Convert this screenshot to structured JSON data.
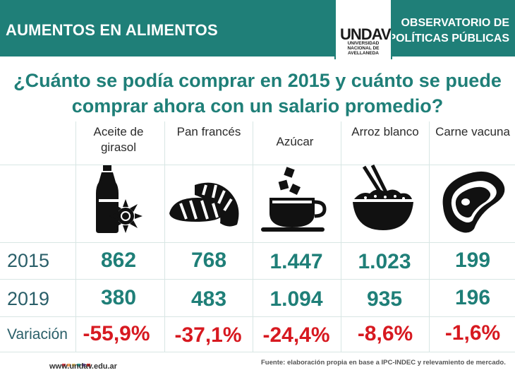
{
  "header": {
    "left_title": "AUMENTOS EN ALIMENTOS",
    "right_title": "OBSERVATORIO DE POLÍTICAS PÚBLICAS",
    "logo_mark": "UNDAV",
    "logo_sub": "UNIVERSIDAD NACIONAL DE AVELLANEDA",
    "color": "#1f7f78"
  },
  "question": "¿Cuánto se podía comprar en 2015 y cuánto se puede comprar ahora con un salario promedio?",
  "columns": [
    {
      "label": "Aceite de girasol",
      "icon": "sunflower-oil-bottle-icon"
    },
    {
      "label": "Pan francés",
      "icon": "bread-loaves-icon"
    },
    {
      "label": "Azúcar",
      "icon": "coffee-cup-sugar-cubes-icon"
    },
    {
      "label": "Arroz blanco",
      "icon": "rice-bowl-chopsticks-icon"
    },
    {
      "label": "Carne vacuna",
      "icon": "steak-icon"
    }
  ],
  "rows": [
    {
      "label": "2015",
      "values": [
        "862",
        "768",
        "1.447",
        "1.023",
        "199"
      ]
    },
    {
      "label": "2019",
      "values": [
        "380",
        "483",
        "1.094",
        "935",
        "196"
      ]
    },
    {
      "label": "Variación",
      "values": [
        "-55,9%",
        "-37,1%",
        "-24,4%",
        "-8,6%",
        "-1,6%"
      ]
    }
  ],
  "footer": {
    "url": "www.undav.edu.ar",
    "source": "Fuente: elaboración propia en base a IPC-INDEC y relevamiento de mercado.",
    "dot_colors": [
      "#e63946",
      "#f4a261",
      "#e9c46a",
      "#2a9d8f",
      "#6a4c93",
      "#d62828"
    ]
  },
  "accent_negative": "#d71920"
}
